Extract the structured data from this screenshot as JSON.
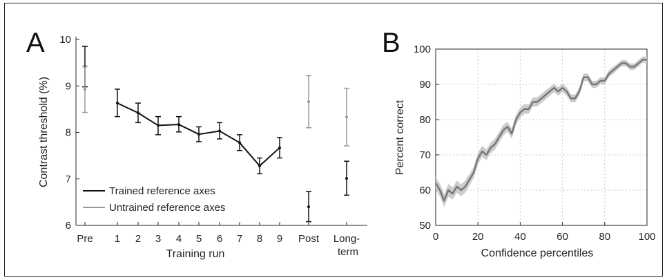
{
  "figure": {
    "panels": [
      "A",
      "B"
    ]
  },
  "chart_data": [
    {
      "panel": "A",
      "type": "line",
      "title": "",
      "xlabel": "Training run",
      "ylabel": "Contrast threshold (%)",
      "ylim": [
        6,
        10
      ],
      "yticks": [
        "6",
        "7",
        "8",
        "9",
        "10"
      ],
      "categories": [
        "Pre",
        "1",
        "2",
        "3",
        "4",
        "5",
        "6",
        "7",
        "8",
        "9",
        "Post",
        "Long-term"
      ],
      "category_label_lines": [
        [
          "Pre"
        ],
        [
          "1"
        ],
        [
          "2"
        ],
        [
          "3"
        ],
        [
          "4"
        ],
        [
          "5"
        ],
        [
          "6"
        ],
        [
          "7"
        ],
        [
          "8"
        ],
        [
          "9"
        ],
        [
          "Post"
        ],
        [
          "Long-",
          "term"
        ]
      ],
      "grid": false,
      "legend": {
        "position": "bottom-left",
        "entries": [
          {
            "label": "Trained reference axes",
            "color": "#111111"
          },
          {
            "label": "Untrained reference axes",
            "color": "#999999"
          }
        ]
      },
      "series": [
        {
          "name": "Trained reference axes",
          "color": "#111111",
          "points": [
            {
              "x": "Pre",
              "y": 9.42,
              "err_low": 8.98,
              "err_high": 9.85
            },
            {
              "x": "1",
              "y": 8.63,
              "err_low": 8.34,
              "err_high": 8.93
            },
            {
              "x": "2",
              "y": 8.42,
              "err_low": 8.21,
              "err_high": 8.63
            },
            {
              "x": "3",
              "y": 8.15,
              "err_low": 7.95,
              "err_high": 8.34
            },
            {
              "x": "4",
              "y": 8.17,
              "err_low": 8.01,
              "err_high": 8.34
            },
            {
              "x": "5",
              "y": 7.96,
              "err_low": 7.8,
              "err_high": 8.12
            },
            {
              "x": "6",
              "y": 8.03,
              "err_low": 7.86,
              "err_high": 8.21
            },
            {
              "x": "7",
              "y": 7.78,
              "err_low": 7.61,
              "err_high": 7.95
            },
            {
              "x": "8",
              "y": 7.28,
              "err_low": 7.11,
              "err_high": 7.45
            },
            {
              "x": "9",
              "y": 7.67,
              "err_low": 7.45,
              "err_high": 7.89
            },
            {
              "x": "Post",
              "y": 6.4,
              "err_low": 6.08,
              "err_high": 6.73
            },
            {
              "x": "Long-term",
              "y": 7.01,
              "err_low": 6.65,
              "err_high": 7.38
            }
          ],
          "connected_range": [
            "1",
            "9"
          ]
        },
        {
          "name": "Untrained reference axes",
          "color": "#999999",
          "points": [
            {
              "x": "Pre",
              "y": 8.93,
              "err_low": 8.43,
              "err_high": 9.42
            },
            {
              "x": "Post",
              "y": 8.66,
              "err_low": 8.1,
              "err_high": 9.22
            },
            {
              "x": "Long-term",
              "y": 8.33,
              "err_low": 7.71,
              "err_high": 8.95
            }
          ]
        }
      ]
    },
    {
      "panel": "B",
      "type": "line",
      "title": "",
      "xlabel": "Confidence percentiles",
      "ylabel": "Percent correct",
      "xlim": [
        0,
        100
      ],
      "ylim": [
        50,
        100
      ],
      "xticks": [
        0,
        20,
        40,
        60,
        80,
        100
      ],
      "yticks": [
        50,
        60,
        70,
        80,
        90,
        100
      ],
      "grid": true,
      "series": [
        {
          "color": "#777777",
          "band_color": "#cccccc",
          "x": [
            0,
            2,
            4,
            6,
            8,
            10,
            12,
            14,
            16,
            18,
            20,
            22,
            24,
            26,
            28,
            30,
            32,
            34,
            36,
            38,
            40,
            42,
            44,
            46,
            48,
            50,
            52,
            54,
            56,
            58,
            60,
            62,
            64,
            66,
            68,
            70,
            72,
            74,
            76,
            78,
            80,
            82,
            84,
            86,
            88,
            90,
            92,
            94,
            96,
            98,
            100
          ],
          "y": [
            62,
            60,
            57,
            60,
            59,
            61,
            60,
            61,
            63,
            65,
            69,
            71,
            70,
            72,
            73,
            75,
            77,
            78,
            76,
            80,
            82,
            83,
            83,
            85,
            85,
            86,
            87,
            88,
            89,
            88,
            89,
            88,
            86,
            86,
            88,
            92,
            92,
            90,
            90,
            91,
            91,
            93,
            94,
            95,
            96,
            96,
            95,
            95,
            96,
            97,
            97
          ],
          "band": [
            1.8,
            1.8,
            1.8,
            1.8,
            1.7,
            1.7,
            1.7,
            1.7,
            1.6,
            1.6,
            1.6,
            1.6,
            1.5,
            1.5,
            1.5,
            1.5,
            1.5,
            1.4,
            1.4,
            1.4,
            1.4,
            1.4,
            1.3,
            1.3,
            1.3,
            1.3,
            1.3,
            1.2,
            1.2,
            1.2,
            1.2,
            1.2,
            1.1,
            1.1,
            1.1,
            1.1,
            1.1,
            1.0,
            1.0,
            1.0,
            1.0,
            1.0,
            1.0,
            0.9,
            0.9,
            0.9,
            0.9,
            0.9,
            0.9,
            0.9,
            0.9
          ]
        }
      ]
    }
  ]
}
